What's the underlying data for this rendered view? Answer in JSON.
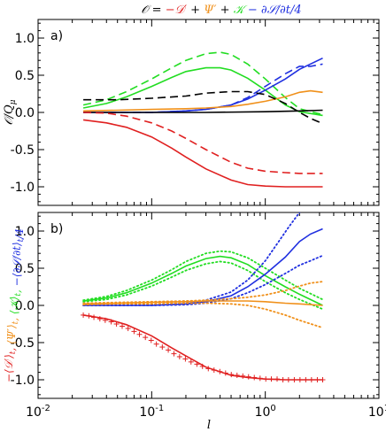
{
  "figure_title": [
    {
      "text": "𝒪 = ",
      "color": "#000000"
    },
    {
      "text": "−𝒟′",
      "color": "#e02020"
    },
    {
      "text": " + ",
      "color": "#000000"
    },
    {
      "text": "Ψ′",
      "color": "#f0901a"
    },
    {
      "text": " + ",
      "color": "#000000"
    },
    {
      "text": "𝒦",
      "color": "#22dd22"
    },
    {
      "text": " − ∂𝒮/∂t/4",
      "color": "#2030e0"
    }
  ],
  "chart_data": [
    {
      "type": "line",
      "panel_label": "a)",
      "xscale": "log",
      "xlim": [
        0.01,
        10
      ],
      "ylim": [
        -1.25,
        1.25
      ],
      "xlabel": "",
      "ylabel": "𝒪/Q_μ",
      "ylabel_parts": [
        {
          "text": "𝒪/Q",
          "color": "#000000"
        },
        {
          "text": "μ",
          "color": "#000000",
          "sub": true
        }
      ],
      "xticks": [
        0.01,
        0.1,
        1,
        10
      ],
      "xtick_labels": [
        "",
        "",
        "",
        ""
      ],
      "yticks": [
        -1.0,
        -0.5,
        0.0,
        0.5,
        1.0
      ],
      "ytick_labels": [
        "-1.0",
        "-0.5",
        "0.0",
        "0.5",
        "1.0"
      ],
      "grid": false,
      "series": [
        {
          "color": "#22dd22",
          "dash": "solid",
          "x": [
            0.025,
            0.04,
            0.06,
            0.1,
            0.15,
            0.2,
            0.3,
            0.4,
            0.5,
            0.7,
            1.0,
            1.5,
            2.0,
            3.2
          ],
          "y": [
            0.06,
            0.12,
            0.21,
            0.35,
            0.47,
            0.55,
            0.6,
            0.6,
            0.57,
            0.46,
            0.3,
            0.1,
            0.01,
            -0.04
          ]
        },
        {
          "color": "#22dd22",
          "dash": "dashed",
          "x": [
            0.025,
            0.04,
            0.06,
            0.1,
            0.15,
            0.2,
            0.3,
            0.4,
            0.5,
            0.7,
            1.0,
            1.5,
            2.0,
            3.2
          ],
          "y": [
            0.1,
            0.17,
            0.28,
            0.45,
            0.6,
            0.7,
            0.79,
            0.81,
            0.78,
            0.65,
            0.45,
            0.2,
            0.05,
            -0.03
          ]
        },
        {
          "color": "#2030e0",
          "dash": "solid",
          "x": [
            0.025,
            0.05,
            0.1,
            0.2,
            0.3,
            0.5,
            0.7,
            1.0,
            1.5,
            2.0,
            3.2
          ],
          "y": [
            0.0,
            0.0,
            0.0,
            0.02,
            0.04,
            0.1,
            0.18,
            0.3,
            0.45,
            0.58,
            0.73
          ]
        },
        {
          "color": "#2030e0",
          "dash": "dashed",
          "x": [
            0.025,
            0.05,
            0.1,
            0.2,
            0.3,
            0.5,
            0.7,
            1.0,
            1.5,
            2.0,
            2.5,
            3.2
          ],
          "y": [
            0.0,
            0.0,
            0.0,
            0.02,
            0.04,
            0.1,
            0.2,
            0.35,
            0.52,
            0.62,
            0.62,
            0.65
          ]
        },
        {
          "color": "#f0901a",
          "dash": "solid",
          "x": [
            0.025,
            0.05,
            0.1,
            0.2,
            0.3,
            0.5,
            0.7,
            1.0,
            1.5,
            2.0,
            2.5,
            3.2
          ],
          "y": [
            0.02,
            0.03,
            0.04,
            0.05,
            0.06,
            0.08,
            0.11,
            0.15,
            0.21,
            0.27,
            0.29,
            0.27
          ]
        },
        {
          "color": "#000000",
          "dash": "solid",
          "x": [
            0.025,
            0.1,
            0.3,
            1.0,
            2.0,
            3.2
          ],
          "y": [
            0.0,
            0.0,
            0.0,
            0.01,
            0.02,
            0.03
          ]
        },
        {
          "color": "#000000",
          "dash": "dashed",
          "x": [
            0.025,
            0.05,
            0.1,
            0.2,
            0.3,
            0.5,
            0.7,
            1.0,
            1.5,
            2.0,
            2.5,
            3.2
          ],
          "y": [
            0.17,
            0.17,
            0.19,
            0.22,
            0.26,
            0.28,
            0.28,
            0.24,
            0.12,
            0.0,
            -0.08,
            -0.15
          ]
        },
        {
          "color": "#e02020",
          "dash": "solid",
          "x": [
            0.025,
            0.04,
            0.06,
            0.1,
            0.15,
            0.2,
            0.3,
            0.5,
            0.7,
            1.0,
            1.5,
            2.0,
            3.2
          ],
          "y": [
            -0.1,
            -0.14,
            -0.2,
            -0.33,
            -0.48,
            -0.6,
            -0.76,
            -0.91,
            -0.97,
            -0.99,
            -1.0,
            -1.0,
            -1.0
          ]
        },
        {
          "color": "#e02020",
          "dash": "dashed",
          "x": [
            0.025,
            0.04,
            0.06,
            0.1,
            0.15,
            0.2,
            0.3,
            0.5,
            0.7,
            1.0,
            1.5,
            2.0,
            3.2
          ],
          "y": [
            0.0,
            -0.01,
            -0.05,
            -0.14,
            -0.25,
            -0.35,
            -0.5,
            -0.67,
            -0.75,
            -0.79,
            -0.81,
            -0.82,
            -0.82
          ]
        }
      ]
    },
    {
      "type": "line",
      "panel_label": "b)",
      "xscale": "log",
      "xlim": [
        0.01,
        10
      ],
      "ylim": [
        -1.25,
        1.25
      ],
      "xlabel": "l",
      "ylabel": "−⟨𝒟′⟩t, ⟨Ψ′⟩t, ⟨𝒦⟩t, −⟨∂𝒮/∂t⟩t/4",
      "ylabel_parts": [
        {
          "text": "−⟨𝒟′⟩",
          "color": "#e02020"
        },
        {
          "text": "t",
          "color": "#e02020",
          "sub": true
        },
        {
          "text": ", ",
          "color": "#e02020"
        },
        {
          "text": "⟨Ψ′⟩",
          "color": "#f0901a"
        },
        {
          "text": "t",
          "color": "#f0901a",
          "sub": true
        },
        {
          "text": ", ",
          "color": "#f0901a"
        },
        {
          "text": "⟨𝒦⟩",
          "color": "#22dd22"
        },
        {
          "text": "t",
          "color": "#22dd22",
          "sub": true
        },
        {
          "text": ", ",
          "color": "#22dd22"
        },
        {
          "text": "−⟨∂𝒮/∂t⟩",
          "color": "#2030e0"
        },
        {
          "text": "t",
          "color": "#2030e0",
          "sub": true
        },
        {
          "text": "/4",
          "color": "#2030e0"
        }
      ],
      "xticks": [
        0.01,
        0.1,
        1,
        10
      ],
      "xtick_labels": [
        "10-2",
        "10-1",
        "100",
        "101"
      ],
      "yticks": [
        -1.0,
        -0.5,
        0.0,
        0.5,
        1.0
      ],
      "ytick_labels": [
        "-1.0",
        "-0.5",
        "0.0",
        "0.5",
        "1.0"
      ],
      "grid": false,
      "series": [
        {
          "color": "#22dd22",
          "dash": "solid",
          "x": [
            0.025,
            0.04,
            0.06,
            0.1,
            0.15,
            0.2,
            0.3,
            0.4,
            0.5,
            0.7,
            1.0,
            1.5,
            2.0,
            3.2
          ],
          "y": [
            0.06,
            0.1,
            0.17,
            0.3,
            0.43,
            0.53,
            0.63,
            0.66,
            0.64,
            0.55,
            0.4,
            0.25,
            0.15,
            0.0
          ]
        },
        {
          "color": "#22dd22",
          "dash": "dotted",
          "x": [
            0.025,
            0.04,
            0.06,
            0.1,
            0.15,
            0.2,
            0.3,
            0.4,
            0.5,
            0.7,
            1.0,
            1.5,
            2.0,
            3.2
          ],
          "y": [
            0.07,
            0.12,
            0.2,
            0.34,
            0.48,
            0.59,
            0.7,
            0.73,
            0.72,
            0.64,
            0.5,
            0.34,
            0.23,
            0.08
          ]
        },
        {
          "color": "#22dd22",
          "dash": "dotted",
          "x": [
            0.025,
            0.04,
            0.06,
            0.1,
            0.15,
            0.2,
            0.3,
            0.4,
            0.5,
            0.7,
            1.0,
            1.5,
            2.0,
            3.2
          ],
          "y": [
            0.05,
            0.08,
            0.14,
            0.26,
            0.38,
            0.47,
            0.56,
            0.59,
            0.57,
            0.47,
            0.32,
            0.17,
            0.08,
            -0.05
          ]
        },
        {
          "color": "#2030e0",
          "dash": "solid",
          "x": [
            0.025,
            0.05,
            0.1,
            0.2,
            0.3,
            0.5,
            0.7,
            1.0,
            1.5,
            2.0,
            2.5,
            3.2
          ],
          "y": [
            0.0,
            0.0,
            0.0,
            0.02,
            0.05,
            0.13,
            0.25,
            0.42,
            0.65,
            0.86,
            0.96,
            1.03
          ]
        },
        {
          "color": "#2030e0",
          "dash": "dotted",
          "x": [
            0.025,
            0.05,
            0.1,
            0.2,
            0.3,
            0.5,
            0.7,
            1.0,
            1.3,
            1.6,
            2.0
          ],
          "y": [
            0.0,
            0.0,
            0.01,
            0.03,
            0.07,
            0.18,
            0.34,
            0.6,
            0.85,
            1.05,
            1.25
          ]
        },
        {
          "color": "#2030e0",
          "dash": "dotted",
          "x": [
            0.025,
            0.05,
            0.1,
            0.2,
            0.3,
            0.5,
            0.7,
            1.0,
            1.5,
            2.0,
            2.5,
            3.2
          ],
          "y": [
            0.0,
            0.0,
            0.0,
            0.01,
            0.03,
            0.09,
            0.17,
            0.28,
            0.43,
            0.54,
            0.6,
            0.67
          ]
        },
        {
          "color": "#f0901a",
          "dash": "solid",
          "x": [
            0.025,
            0.05,
            0.1,
            0.2,
            0.3,
            0.5,
            0.7,
            1.0,
            1.5,
            2.0,
            3.2
          ],
          "y": [
            0.02,
            0.03,
            0.04,
            0.05,
            0.06,
            0.06,
            0.06,
            0.05,
            0.03,
            0.02,
            0.0
          ]
        },
        {
          "color": "#f0901a",
          "dash": "dotted",
          "x": [
            0.025,
            0.05,
            0.1,
            0.2,
            0.3,
            0.5,
            0.7,
            1.0,
            1.5,
            2.0,
            2.5,
            3.2
          ],
          "y": [
            0.03,
            0.04,
            0.05,
            0.06,
            0.07,
            0.09,
            0.11,
            0.14,
            0.2,
            0.26,
            0.3,
            0.32
          ]
        },
        {
          "color": "#f0901a",
          "dash": "dotted",
          "x": [
            0.025,
            0.05,
            0.1,
            0.2,
            0.3,
            0.5,
            0.7,
            1.0,
            1.5,
            2.0,
            3.2
          ],
          "y": [
            0.01,
            0.02,
            0.02,
            0.03,
            0.03,
            0.02,
            0.0,
            -0.05,
            -0.13,
            -0.2,
            -0.3
          ]
        },
        {
          "color": "#e02020",
          "dash": "solid",
          "x": [
            0.025,
            0.04,
            0.06,
            0.1,
            0.15,
            0.2,
            0.3,
            0.5,
            0.7,
            1.0,
            1.5,
            2.0,
            3.2
          ],
          "y": [
            -0.13,
            -0.18,
            -0.26,
            -0.41,
            -0.57,
            -0.68,
            -0.83,
            -0.94,
            -0.97,
            -0.99,
            -1.0,
            -1.0,
            -1.0
          ]
        }
      ],
      "markers": [
        {
          "color": "#e02020",
          "symbol": "+",
          "x": [
            0.025,
            0.028,
            0.031,
            0.035,
            0.039,
            0.044,
            0.049,
            0.055,
            0.062,
            0.07,
            0.078,
            0.088,
            0.099,
            0.11,
            0.124,
            0.14,
            0.157,
            0.176,
            0.198,
            0.222,
            0.25,
            0.28,
            0.315,
            0.354,
            0.398,
            0.447,
            0.502,
            0.564,
            0.634,
            0.712,
            0.8,
            0.9,
            1.01,
            1.13,
            1.27,
            1.43,
            1.6,
            1.8,
            2.02,
            2.27,
            2.55,
            2.87,
            3.2
          ],
          "y": [
            -0.13,
            -0.14,
            -0.16,
            -0.18,
            -0.2,
            -0.22,
            -0.25,
            -0.28,
            -0.31,
            -0.35,
            -0.39,
            -0.43,
            -0.47,
            -0.52,
            -0.56,
            -0.6,
            -0.65,
            -0.69,
            -0.72,
            -0.76,
            -0.79,
            -0.82,
            -0.85,
            -0.87,
            -0.89,
            -0.91,
            -0.93,
            -0.94,
            -0.95,
            -0.96,
            -0.97,
            -0.98,
            -0.99,
            -0.99,
            -0.99,
            -1.0,
            -1.0,
            -1.0,
            -1.0,
            -1.0,
            -1.0,
            -1.0,
            -1.0
          ]
        }
      ]
    }
  ]
}
